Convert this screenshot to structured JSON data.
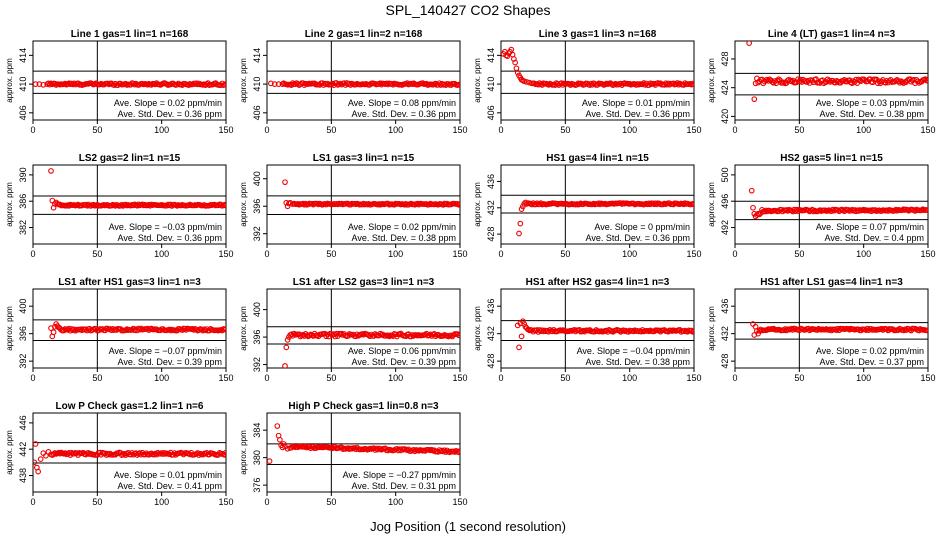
{
  "figure": {
    "title": "SPL_140427  CO2 Shapes",
    "xlabel": "Jog Position (1 second resolution)"
  },
  "chart_data": [
    {
      "type": "scatter",
      "title": "Line 1 gas=1 lin=1 n=168",
      "ylabel": "approx. ppm",
      "xlim": [
        0,
        150
      ],
      "ylim": [
        405,
        416
      ],
      "xticks": [
        0,
        50,
        100,
        150
      ],
      "yticks": [
        406,
        410,
        414
      ],
      "hlines": [
        411.8,
        408.7
      ],
      "vline": 50,
      "baseline": 410.0,
      "noise": 0.15,
      "slope_x": 0,
      "x": [
        2,
        5,
        8,
        11
      ],
      "y": [
        410.0,
        410.0,
        409.9,
        410.0
      ],
      "annotation": [
        "Ave. Slope =  0.02  ppm/min",
        "Ave. Std. Dev. =  0.36  ppm"
      ]
    },
    {
      "type": "scatter",
      "title": "Line 2 gas=1 lin=2 n=168",
      "ylabel": "approx. ppm",
      "xlim": [
        0,
        150
      ],
      "ylim": [
        405,
        416
      ],
      "xticks": [
        0,
        50,
        100,
        150
      ],
      "yticks": [
        406,
        410,
        414
      ],
      "hlines": [
        411.8,
        408.7
      ],
      "vline": 50,
      "baseline": 410.0,
      "noise": 0.15,
      "slope_x": 0,
      "x": [
        3,
        6,
        9,
        12
      ],
      "y": [
        410.1,
        410.0,
        410.0,
        410.0
      ],
      "annotation": [
        "Ave. Slope =  0.08  ppm/min",
        "Ave. Std. Dev. =  0.36  ppm"
      ]
    },
    {
      "type": "scatter",
      "title": "Line 3 gas=1 lin=3 n=168",
      "ylabel": "approx. ppm",
      "xlim": [
        0,
        150
      ],
      "ylim": [
        405,
        416
      ],
      "xticks": [
        0,
        50,
        100,
        150
      ],
      "yticks": [
        406,
        410,
        414
      ],
      "hlines": [
        411.8,
        408.7
      ],
      "vline": 50,
      "baseline": 410.0,
      "noise": 0.15,
      "slope_x": 0,
      "x": [
        2,
        3,
        4,
        5,
        6,
        7,
        8,
        9,
        10,
        11,
        12,
        13,
        14,
        15,
        16,
        17,
        18,
        20,
        22,
        24
      ],
      "y": [
        414.2,
        414.5,
        414.0,
        413.9,
        414.3,
        414.5,
        414.8,
        414.1,
        413.5,
        413.0,
        412.2,
        411.6,
        411.2,
        410.9,
        410.6,
        410.5,
        410.4,
        410.3,
        410.2,
        410.1
      ],
      "annotation": [
        "Ave. Slope =  0.01  ppm/min",
        "Ave. Std. Dev. =  0.36  ppm"
      ]
    },
    {
      "type": "scatter",
      "title": "Line 4 (LT) gas=1 lin=4 n=3",
      "ylabel": "approx. ppm",
      "xlim": [
        0,
        150
      ],
      "ylim": [
        419.5,
        430.5
      ],
      "xticks": [
        0,
        50,
        100,
        150
      ],
      "yticks": [
        420,
        424,
        428
      ],
      "hlines": [
        426.0,
        423.0
      ],
      "vline": 50,
      "baseline": 424.9,
      "noise": 0.3,
      "slope_x": 0,
      "x": [
        11,
        15,
        16,
        17,
        18,
        19,
        20
      ],
      "y": [
        430.2,
        422.4,
        424.6,
        425.3,
        424.7,
        424.9,
        425.1
      ],
      "annotation": [
        "Ave. Slope =  0.03  ppm/min",
        "Ave. Std. Dev. =  0.38  ppm"
      ]
    },
    {
      "type": "scatter",
      "title": "LS2 gas=2 lin=1 n=15",
      "ylabel": "approx. ppm",
      "xlim": [
        0,
        150
      ],
      "ylim": [
        379.5,
        391.5
      ],
      "xticks": [
        0,
        50,
        100,
        150
      ],
      "yticks": [
        382,
        386,
        390
      ],
      "hlines": [
        386.8,
        384.0
      ],
      "vline": 50,
      "baseline": 385.4,
      "noise": 0.12,
      "slope_x": 0,
      "x": [
        14,
        15,
        16,
        17,
        18,
        19,
        20
      ],
      "y": [
        390.6,
        386.1,
        385.0,
        385.6,
        385.8,
        385.6,
        385.5
      ],
      "annotation": [
        "Ave. Slope = −0.03  ppm/min",
        "Ave. Std. Dev. =  0.36  ppm"
      ]
    },
    {
      "type": "scatter",
      "title": "LS1 gas=3 lin=1 n=15",
      "ylabel": "approx. ppm",
      "xlim": [
        0,
        150
      ],
      "ylim": [
        390.5,
        402
      ],
      "xticks": [
        0,
        50,
        100,
        150
      ],
      "yticks": [
        392,
        396,
        400
      ],
      "hlines": [
        397.5,
        394.8
      ],
      "vline": 50,
      "baseline": 396.3,
      "noise": 0.1,
      "slope_x": 0,
      "x": [
        14,
        15,
        16,
        17,
        18,
        20
      ],
      "y": [
        399.5,
        396.5,
        396.0,
        396.4,
        396.5,
        396.3
      ],
      "annotation": [
        "Ave. Slope =  0.02  ppm/min",
        "Ave. Std. Dev. =  0.38  ppm"
      ]
    },
    {
      "type": "scatter",
      "title": "HS1 gas=4 lin=1 n=15",
      "ylabel": "approx. ppm",
      "xlim": [
        0,
        150
      ],
      "ylim": [
        426.5,
        438.5
      ],
      "xticks": [
        0,
        50,
        100,
        150
      ],
      "yticks": [
        428,
        432,
        436
      ],
      "hlines": [
        433.9,
        431.2
      ],
      "vline": 50,
      "baseline": 432.6,
      "noise": 0.12,
      "slope_x": 0,
      "x": [
        14,
        15,
        16,
        17,
        18,
        19,
        20
      ],
      "y": [
        428.1,
        429.6,
        431.8,
        432.2,
        432.6,
        432.8,
        432.6
      ],
      "annotation": [
        "Ave. Slope =  0  ppm/min",
        "Ave. Std. Dev. =  0.36  ppm"
      ]
    },
    {
      "type": "scatter",
      "title": "HS2 gas=5 lin=1 n=15",
      "ylabel": "approx. ppm",
      "xlim": [
        0,
        150
      ],
      "ylim": [
        489.5,
        501.5
      ],
      "xticks": [
        0,
        50,
        100,
        150
      ],
      "yticks": [
        492,
        496,
        500
      ],
      "hlines": [
        496.0,
        493.2
      ],
      "vline": 50,
      "baseline": 494.6,
      "noise": 0.15,
      "slope_x": 0.0008,
      "x": [
        13,
        14,
        15,
        16,
        17,
        18,
        19,
        20
      ],
      "y": [
        497.6,
        495.0,
        494.1,
        493.7,
        493.9,
        494.1,
        494.0,
        494.2
      ],
      "annotation": [
        "Ave. Slope =  0.07  ppm/min",
        "Ave. Std. Dev. =  0.4  ppm"
      ]
    },
    {
      "type": "scatter",
      "title": "LS1 after HS1 gas=3 lin=1 n=3",
      "ylabel": "approx. ppm",
      "xlim": [
        0,
        150
      ],
      "ylim": [
        391,
        402.5
      ],
      "xticks": [
        0,
        50,
        100,
        150
      ],
      "yticks": [
        392,
        396,
        400
      ],
      "hlines": [
        398.0,
        395.0
      ],
      "vline": 50,
      "baseline": 396.6,
      "noise": 0.18,
      "slope_x": 0,
      "x": [
        14,
        15,
        16,
        17,
        18,
        19,
        20
      ],
      "y": [
        396.8,
        395.6,
        396.2,
        397.0,
        397.4,
        397.1,
        396.9
      ],
      "annotation": [
        "Ave. Slope = −0.07  ppm/min",
        "Ave. Std. Dev. =  0.39  ppm"
      ]
    },
    {
      "type": "scatter",
      "title": "LS1 after LS2 gas=3 lin=1 n=3",
      "ylabel": "approx. ppm",
      "xlim": [
        0,
        150
      ],
      "ylim": [
        391.5,
        403
      ],
      "xticks": [
        0,
        50,
        100,
        150
      ],
      "yticks": [
        392,
        396,
        400
      ],
      "hlines": [
        397.5,
        395.0
      ],
      "vline": 50,
      "baseline": 396.3,
      "noise": 0.22,
      "slope_x": 0,
      "x": [
        14,
        15,
        16,
        17,
        18,
        19,
        20
      ],
      "y": [
        391.8,
        394.5,
        395.6,
        396.0,
        396.3,
        396.4,
        396.2
      ],
      "annotation": [
        "Ave. Slope =  0.06  ppm/min",
        "Ave. Std. Dev. =  0.39  ppm"
      ]
    },
    {
      "type": "scatter",
      "title": "HS1 after HS2 gas=4 lin=1 n=3",
      "ylabel": "approx. ppm",
      "xlim": [
        0,
        150
      ],
      "ylim": [
        427,
        438.5
      ],
      "xticks": [
        0,
        50,
        100,
        150
      ],
      "yticks": [
        428,
        432,
        436
      ],
      "hlines": [
        433.9,
        431.0
      ],
      "vline": 50,
      "baseline": 432.4,
      "noise": 0.15,
      "slope_x": 0,
      "x": [
        13,
        14,
        15,
        16,
        17,
        18,
        19,
        20,
        21,
        22
      ],
      "y": [
        433.2,
        430.0,
        433.5,
        431.6,
        433.8,
        433.4,
        433.0,
        432.8,
        432.6,
        432.5
      ],
      "annotation": [
        "Ave. Slope = −0.04  ppm/min",
        "Ave. Std. Dev. =  0.38  ppm"
      ]
    },
    {
      "type": "scatter",
      "title": "HS1 after LS1 gas=4 lin=1 n=3",
      "ylabel": "approx. ppm",
      "xlim": [
        0,
        150
      ],
      "ylim": [
        427,
        438.5
      ],
      "xticks": [
        0,
        50,
        100,
        150
      ],
      "yticks": [
        428,
        432,
        436
      ],
      "hlines": [
        433.6,
        431.2
      ],
      "vline": 50,
      "baseline": 432.6,
      "noise": 0.15,
      "slope_x": 0,
      "x": [
        14,
        15,
        16,
        17,
        18,
        19,
        20
      ],
      "y": [
        433.4,
        431.8,
        433.0,
        432.4,
        432.0,
        432.4,
        432.6
      ],
      "annotation": [
        "Ave. Slope =  0.02  ppm/min",
        "Ave. Std. Dev. =  0.37  ppm"
      ]
    },
    {
      "type": "scatter",
      "title": "Low P Check gas=1.2 lin=1 n=6",
      "ylabel": "approx. ppm",
      "xlim": [
        0,
        150
      ],
      "ylim": [
        435.5,
        447.5
      ],
      "xticks": [
        0,
        50,
        100,
        150
      ],
      "yticks": [
        438,
        442,
        446
      ],
      "hlines": [
        443.0,
        439.9
      ],
      "vline": 50,
      "baseline": 441.3,
      "noise": 0.2,
      "slope_x": 0,
      "x": [
        1,
        2,
        3,
        4,
        6,
        8,
        10,
        12,
        14
      ],
      "y": [
        440.0,
        442.8,
        439.2,
        438.6,
        440.5,
        441.4,
        441.0,
        441.6,
        441.2
      ],
      "annotation": [
        "Ave. Slope =  0.01  ppm/min",
        "Ave. Std. Dev. =  0.41  ppm"
      ]
    },
    {
      "type": "scatter",
      "title": "High P Check gas=1 lin=0.8 n=3",
      "ylabel": "approx. ppm",
      "xlim": [
        0,
        150
      ],
      "ylim": [
        375,
        386.5
      ],
      "xticks": [
        0,
        50,
        100,
        150
      ],
      "yticks": [
        376,
        380,
        384
      ],
      "hlines": [
        382.0,
        379.0
      ],
      "vline": 50,
      "baseline": 381.3,
      "noise": 0.15,
      "slope_x": -0.0055,
      "x": [
        2,
        8,
        9,
        10,
        11,
        12,
        13,
        14,
        16,
        18
      ],
      "y": [
        379.5,
        384.6,
        383.2,
        382.6,
        381.8,
        381.5,
        382.0,
        381.6,
        381.3,
        381.4
      ],
      "annotation": [
        "Ave. Slope = −0.27  ppm/min",
        "Ave. Std. Dev. =  0.31  ppm"
      ]
    }
  ]
}
